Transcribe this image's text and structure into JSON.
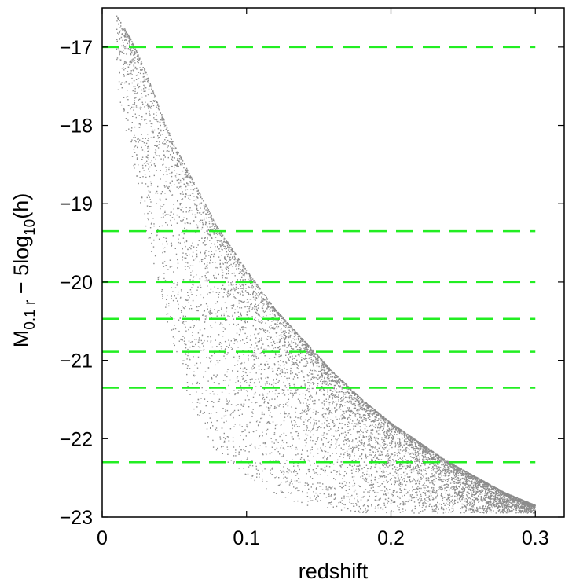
{
  "chart_data": {
    "type": "scatter",
    "xlabel": "redshift",
    "ylabel": {
      "base": "M",
      "sub1": "0.1 r",
      "mid": " − 5log",
      "sub2": "10",
      "tail": "(h)"
    },
    "xlim": [
      0,
      0.32
    ],
    "ylim": [
      -23,
      -16.5
    ],
    "y_reversed": true,
    "x_ticks": [
      0,
      0.1,
      0.2,
      0.3
    ],
    "x_tick_labels": [
      "0",
      "0.1",
      "0.2",
      "0.3"
    ],
    "y_ticks": [
      -17,
      -18,
      -19,
      -20,
      -21,
      -22,
      -23
    ],
    "y_tick_labels": [
      "−17",
      "−18",
      "−19",
      "−20",
      "−21",
      "−22",
      "−23"
    ],
    "grid": false,
    "point_color": "#8c8c8c",
    "line_color": "#22ee22",
    "threshold_lines": {
      "style": "dashed",
      "x_range": [
        0,
        0.3
      ],
      "y_values": [
        -17.0,
        -19.35,
        -20.0,
        -20.47,
        -20.89,
        -21.35,
        -22.3
      ]
    },
    "scatter": {
      "description_fields": "galaxy sample; faint limit follows curve; rough envelope in data units",
      "n_points": 9000,
      "x_range": [
        0.01,
        0.3
      ],
      "faint_limit_curve": [
        [
          0.01,
          -16.6
        ],
        [
          0.02,
          -16.9
        ],
        [
          0.03,
          -17.3
        ],
        [
          0.04,
          -17.8
        ],
        [
          0.05,
          -18.25
        ],
        [
          0.06,
          -18.6
        ],
        [
          0.07,
          -18.95
        ],
        [
          0.08,
          -19.3
        ],
        [
          0.1,
          -19.85
        ],
        [
          0.12,
          -20.35
        ],
        [
          0.14,
          -20.75
        ],
        [
          0.16,
          -21.15
        ],
        [
          0.18,
          -21.5
        ],
        [
          0.2,
          -21.8
        ],
        [
          0.22,
          -22.05
        ],
        [
          0.24,
          -22.3
        ],
        [
          0.26,
          -22.5
        ],
        [
          0.28,
          -22.7
        ],
        [
          0.3,
          -22.85
        ]
      ],
      "bright_edge_curve": [
        [
          0.01,
          -17.5
        ],
        [
          0.02,
          -18.4
        ],
        [
          0.03,
          -19.3
        ],
        [
          0.04,
          -20.2
        ],
        [
          0.05,
          -20.9
        ],
        [
          0.06,
          -21.5
        ],
        [
          0.07,
          -21.9
        ],
        [
          0.08,
          -22.2
        ],
        [
          0.1,
          -22.5
        ],
        [
          0.12,
          -22.7
        ],
        [
          0.14,
          -22.85
        ],
        [
          0.2,
          -23.0
        ],
        [
          0.3,
          -23.0
        ]
      ]
    }
  }
}
